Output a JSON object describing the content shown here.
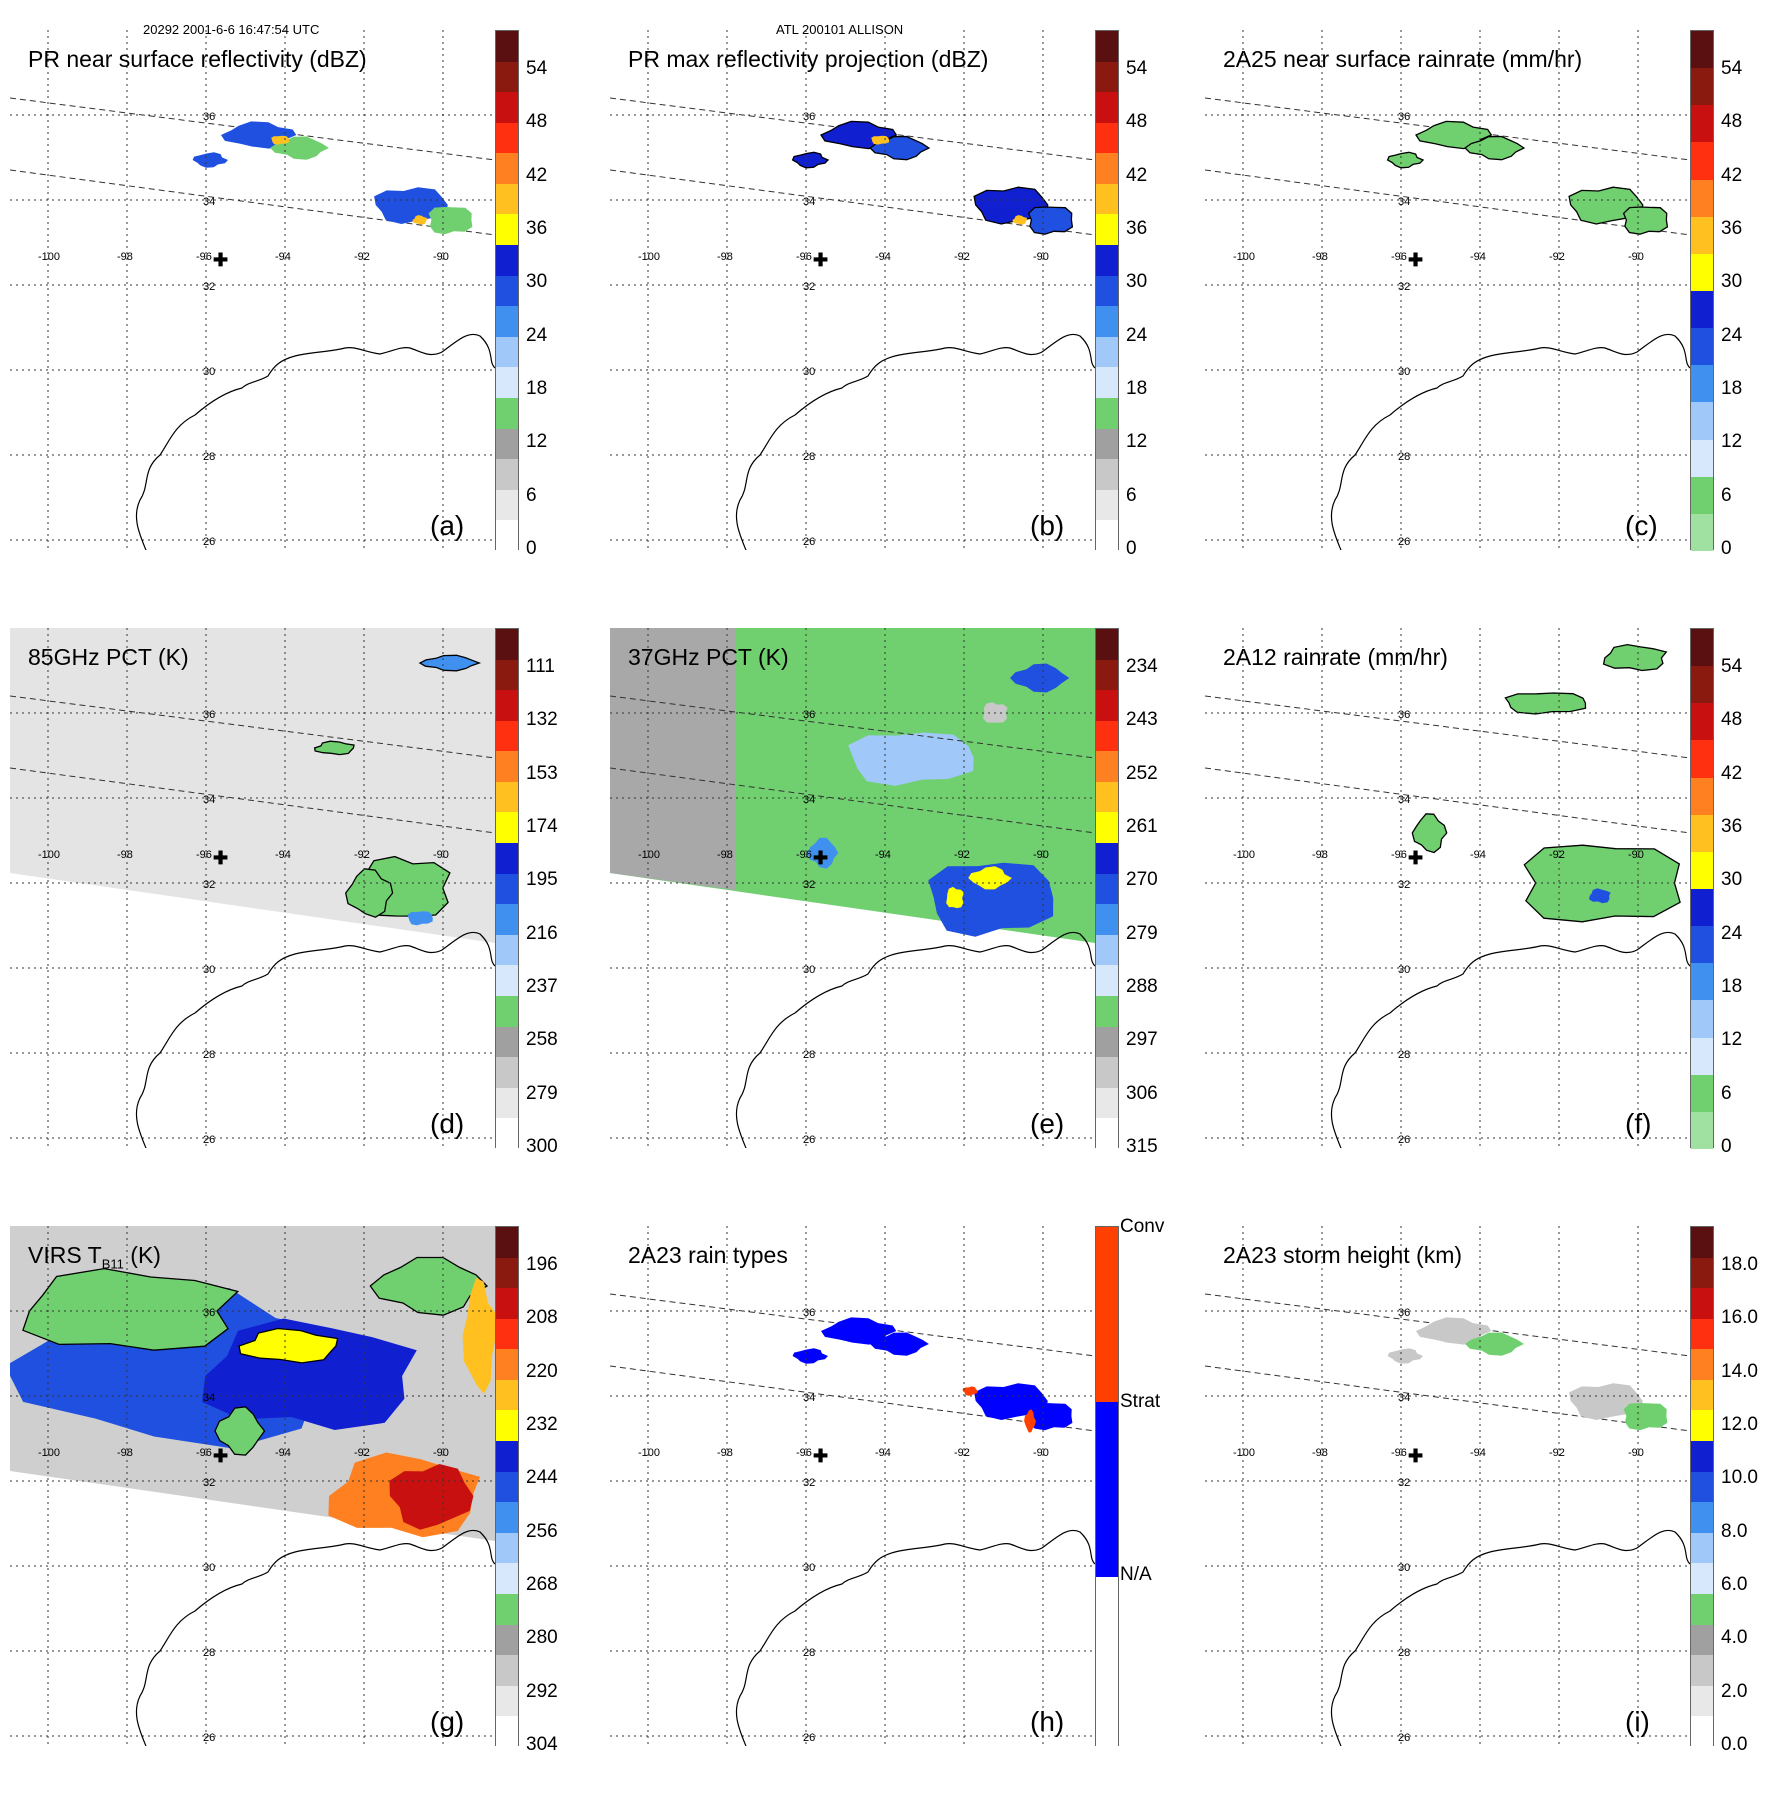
{
  "header": {
    "orbit_time": "20292 2001-6-6 16:47:54 UTC",
    "storm": "ATL 200101 ALLISON"
  },
  "lon_labels": [
    "-100",
    "-98",
    "-96",
    "-94",
    "-92",
    "-90"
  ],
  "lat_labels": [
    "36",
    "34",
    "32",
    "30",
    "28",
    "26"
  ],
  "marker_symbol": "✚",
  "panels": [
    {
      "id": "a",
      "title": "PR near surface reflectivity (dBZ)",
      "label": "(a)",
      "ticks": [
        "54",
        "48",
        "42",
        "36",
        "30",
        "24",
        "18",
        "12",
        "6",
        "0"
      ],
      "colors": [
        "#5a1010",
        "#8a1a10",
        "#c81010",
        "#ff3010",
        "#ff8020",
        "#ffc020",
        "#ffff00",
        "#1020d0",
        "#2050e0",
        "#4090f0",
        "#a0c8f8",
        "#d8e8fc",
        "#70d070",
        "#a0a0a0",
        "#c8c8c8",
        "#e8e8e8",
        "#ffffff"
      ]
    },
    {
      "id": "b",
      "title": "PR max reflectivity projection (dBZ)",
      "label": "(b)",
      "ticks": [
        "54",
        "48",
        "42",
        "36",
        "30",
        "24",
        "18",
        "12",
        "6",
        "0"
      ],
      "colors": [
        "#5a1010",
        "#8a1a10",
        "#c81010",
        "#ff3010",
        "#ff8020",
        "#ffc020",
        "#ffff00",
        "#1020d0",
        "#2050e0",
        "#4090f0",
        "#a0c8f8",
        "#d8e8fc",
        "#70d070",
        "#a0a0a0",
        "#c8c8c8",
        "#e8e8e8",
        "#ffffff"
      ]
    },
    {
      "id": "c",
      "title": "2A25 near surface rainrate (mm/hr)",
      "label": "(c)",
      "ticks": [
        "54",
        "48",
        "42",
        "36",
        "30",
        "24",
        "18",
        "12",
        "6",
        "0"
      ],
      "colors": [
        "#5a1010",
        "#8a1a10",
        "#c81010",
        "#ff3010",
        "#ff8020",
        "#ffc020",
        "#ffff00",
        "#1020d0",
        "#2050e0",
        "#4090f0",
        "#a0c8f8",
        "#d8e8fc",
        "#70d070",
        "#a0e0a0"
      ]
    },
    {
      "id": "d",
      "title": "85GHz PCT (K)",
      "label": "(d)",
      "ticks": [
        "111",
        "132",
        "153",
        "174",
        "195",
        "216",
        "237",
        "258",
        "279",
        "300"
      ],
      "colors": [
        "#5a1010",
        "#8a1a10",
        "#c81010",
        "#ff3010",
        "#ff8020",
        "#ffc020",
        "#ffff00",
        "#1020d0",
        "#2050e0",
        "#4090f0",
        "#a0c8f8",
        "#d8e8fc",
        "#70d070",
        "#a0a0a0",
        "#c8c8c8",
        "#e8e8e8",
        "#ffffff"
      ]
    },
    {
      "id": "e",
      "title": "37GHz PCT (K)",
      "label": "(e)",
      "ticks": [
        "234",
        "243",
        "252",
        "261",
        "270",
        "279",
        "288",
        "297",
        "306",
        "315"
      ],
      "colors": [
        "#5a1010",
        "#8a1a10",
        "#c81010",
        "#ff3010",
        "#ff8020",
        "#ffc020",
        "#ffff00",
        "#1020d0",
        "#2050e0",
        "#4090f0",
        "#a0c8f8",
        "#d8e8fc",
        "#70d070",
        "#a0a0a0",
        "#c8c8c8",
        "#e8e8e8",
        "#ffffff"
      ]
    },
    {
      "id": "f",
      "title": "2A12 rainrate (mm/hr)",
      "label": "(f)",
      "ticks": [
        "54",
        "48",
        "42",
        "36",
        "30",
        "24",
        "18",
        "12",
        "6",
        "0"
      ],
      "colors": [
        "#5a1010",
        "#8a1a10",
        "#c81010",
        "#ff3010",
        "#ff8020",
        "#ffc020",
        "#ffff00",
        "#1020d0",
        "#2050e0",
        "#4090f0",
        "#a0c8f8",
        "#d8e8fc",
        "#70d070",
        "#a0e0a0"
      ]
    },
    {
      "id": "g",
      "title": "VIRS T",
      "title_sub": "B11",
      "title_end": " (K)",
      "label": "(g)",
      "ticks": [
        "196",
        "208",
        "220",
        "232",
        "244",
        "256",
        "268",
        "280",
        "292",
        "304"
      ],
      "colors": [
        "#5a1010",
        "#8a1a10",
        "#c81010",
        "#ff3010",
        "#ff8020",
        "#ffc020",
        "#ffff00",
        "#1020d0",
        "#2050e0",
        "#4090f0",
        "#a0c8f8",
        "#d8e8fc",
        "#70d070",
        "#a0a0a0",
        "#c8c8c8",
        "#e8e8e8",
        "#ffffff"
      ]
    },
    {
      "id": "h",
      "title": "2A23 rain types",
      "label": "(h)",
      "ticks": [
        "Conv",
        "Strat",
        "N/A"
      ],
      "colors": [
        "#ff4000",
        "#0000ff",
        "#ffffff"
      ]
    },
    {
      "id": "i",
      "title": "2A23 storm height (km)",
      "label": "(i)",
      "ticks": [
        "18.0",
        "16.0",
        "14.0",
        "12.0",
        "10.0",
        "8.0",
        "6.0",
        "4.0",
        "2.0",
        "0.0"
      ],
      "colors": [
        "#5a1010",
        "#8a1a10",
        "#c81010",
        "#ff3010",
        "#ff8020",
        "#ffc020",
        "#ffff00",
        "#1020d0",
        "#2050e0",
        "#4090f0",
        "#a0c8f8",
        "#d8e8fc",
        "#70d070",
        "#a0a0a0",
        "#c8c8c8",
        "#e8e8e8",
        "#ffffff"
      ]
    }
  ]
}
